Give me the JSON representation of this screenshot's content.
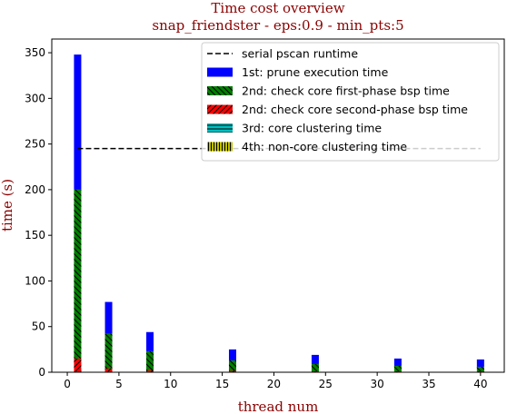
{
  "chart_data": {
    "type": "bar",
    "stacked": true,
    "title": "Time cost overview",
    "subtitle": "snap_friendster - eps:0.9 - min_pts:5",
    "xlabel": "thread num",
    "ylabel": "time (s)",
    "xlim": [
      -1.5,
      42.3
    ],
    "ylim": [
      0,
      365
    ],
    "xticks": [
      0,
      5,
      10,
      15,
      20,
      25,
      30,
      35,
      40
    ],
    "yticks": [
      0,
      50,
      100,
      150,
      200,
      250,
      300,
      350
    ],
    "x": [
      1,
      4,
      8,
      16,
      24,
      32,
      40
    ],
    "series": [
      {
        "name": "2nd: check core second-phase bsp time",
        "color": "#ff0000",
        "hatch": "diag-forward",
        "values": [
          15,
          4,
          2,
          1.5,
          1,
          1,
          1
        ]
      },
      {
        "name": "2nd: check core first-phase bsp time",
        "color": "#008000",
        "hatch": "diag-back",
        "values": [
          185,
          38,
          21,
          11.5,
          8,
          6,
          5
        ]
      },
      {
        "name": "1st: prune execution time",
        "color": "#0000ff",
        "hatch": "none",
        "values": [
          148,
          35,
          21,
          12,
          10,
          8,
          8
        ]
      },
      {
        "name": "3rd: core clustering time",
        "color": "#00bfbf",
        "hatch": "horizontal",
        "values": [
          0,
          0,
          0,
          0,
          0,
          0,
          0
        ]
      },
      {
        "name": "4th: non-core clustering time",
        "color": "#bfbf00",
        "hatch": "vertical",
        "values": [
          0,
          0,
          0,
          0,
          0,
          0,
          0
        ]
      }
    ],
    "reference_line": {
      "name": "serial pscan runtime",
      "y": 245,
      "x_range": [
        1,
        40
      ],
      "style": "dashed",
      "color": "#000000"
    },
    "legend": {
      "placement": "top-right",
      "entries": [
        "serial pscan runtime",
        "1st: prune execution time",
        "2nd: check core first-phase bsp time",
        "2nd: check core second-phase bsp time",
        "3rd: core clustering time",
        "4th: non-core clustering time"
      ]
    },
    "grid": false
  }
}
